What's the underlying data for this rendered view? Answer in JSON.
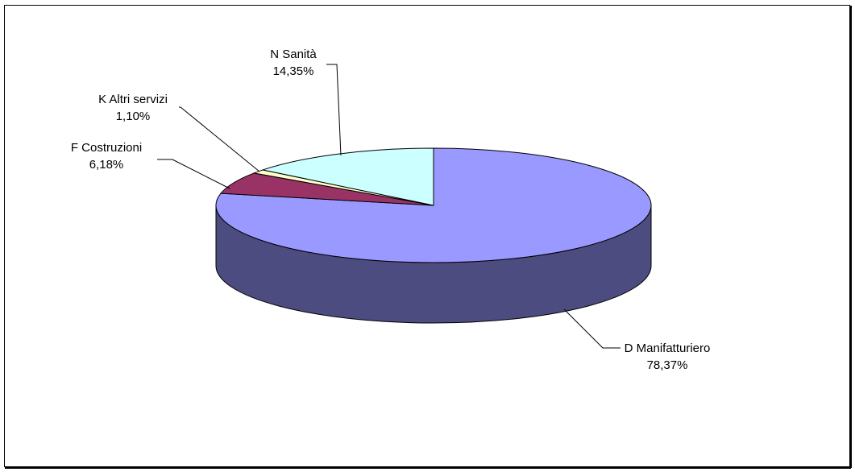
{
  "chart_data": {
    "type": "pie",
    "style": "3d",
    "title": "",
    "slices": [
      {
        "code": "D",
        "name": "Manifatturiero",
        "label_line1": "D  Manifatturiero",
        "label_line2": "78,37%",
        "value": 78.37,
        "top_color": "#9999ff",
        "side_color": "#4c4c80"
      },
      {
        "code": "F",
        "name": "Costruzioni",
        "label_line1": "F  Costruzioni",
        "label_line2": "6,18%",
        "value": 6.18,
        "top_color": "#993366",
        "side_color": "#4d1a33"
      },
      {
        "code": "K",
        "name": "Altri servizi",
        "label_line1": "K  Altri servizi",
        "label_line2": "1,10%",
        "value": 1.1,
        "top_color": "#ffffcc",
        "side_color": "#808066"
      },
      {
        "code": "N",
        "name": "Sanità",
        "label_line1": "N  Sanità",
        "label_line2": "14,35%",
        "value": 14.35,
        "top_color": "#ccffff",
        "side_color": "#668080"
      }
    ]
  }
}
